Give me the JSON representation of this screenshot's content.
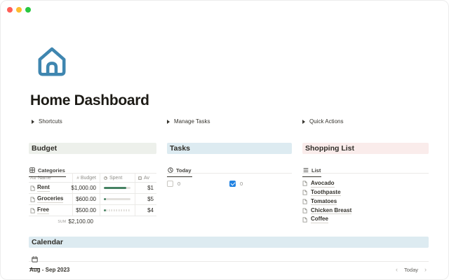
{
  "window": {
    "traffic_lights": {
      "close": "#ff5f57",
      "minimize": "#febc2e",
      "zoom": "#28c840"
    }
  },
  "page": {
    "icon": "house-icon",
    "icon_color": "#3f86b0",
    "title": "Home Dashboard",
    "toggles": [
      {
        "label": "Shortcuts"
      },
      {
        "label": "Manage Tasks"
      },
      {
        "label": "Quick Actions"
      }
    ]
  },
  "budget": {
    "heading": "Budget",
    "heading_bg": "#edf0eb",
    "tab": {
      "label": "Categories",
      "icon": "table-view-icon"
    },
    "table": {
      "bar_color": "#458262",
      "columns": [
        {
          "icon_text": "Aa",
          "label": "Name"
        },
        {
          "icon_text": "#",
          "label": "Budget"
        },
        {
          "icon": "rollup-ring-icon",
          "label": "Spent"
        },
        {
          "icon": "formula-icon",
          "label": "Av"
        }
      ],
      "rows": [
        {
          "name": "Rent",
          "budget": "$1,000.00",
          "spent_pct": 83,
          "available": "$1"
        },
        {
          "name": "Groceries",
          "budget": "$600.00",
          "spent_pct": 8,
          "available": "$5"
        },
        {
          "name": "Free",
          "budget": "$500.00",
          "spent_pct": 7,
          "available": "$4"
        }
      ],
      "sum_label": "sum",
      "sum_value": "$2,100.00"
    }
  },
  "tasks": {
    "heading": "Tasks",
    "heading_bg": "#ddebf1",
    "tab": {
      "label": "Today",
      "icon": "board-view-icon"
    },
    "groups": [
      {
        "state": "unchecked",
        "count": "0"
      },
      {
        "state": "checked",
        "count": "0",
        "checkbox_color": "#2383e2"
      }
    ]
  },
  "shopping": {
    "heading": "Shopping List",
    "heading_bg": "#faeceb",
    "tab": {
      "label": "List",
      "icon": "list-view-icon"
    },
    "items": [
      {
        "name": "Avocado"
      },
      {
        "name": "Toothpaste"
      },
      {
        "name": "Tomatoes"
      },
      {
        "name": "Chicken Breast"
      },
      {
        "name": "Coffee"
      }
    ]
  },
  "calendar": {
    "heading": "Calendar",
    "heading_bg": "#ddebf1",
    "tab_icon": "calendar-view-icon",
    "range": "Aug - Sep 2023",
    "nav": {
      "prev": "‹",
      "today": "Today",
      "next": "›"
    }
  }
}
